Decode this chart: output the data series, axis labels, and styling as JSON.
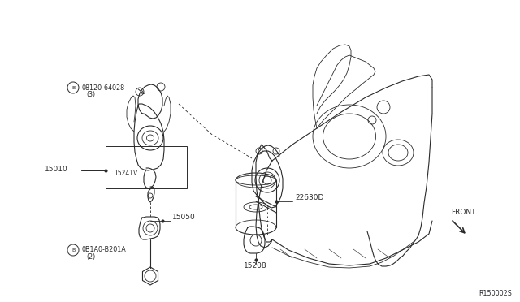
{
  "bg_color": "#ffffff",
  "line_color": "#2a2a2a",
  "fig_width": 6.4,
  "fig_height": 3.72,
  "diagram_code": "R150002S",
  "label_08120": "08120-64028",
  "label_08120_sub": "(3)",
  "label_0B1A0": "0B1A0-B201A",
  "label_0B1A0_sub": "(2)",
  "label_15010": "15010",
  "label_15241V": "15241V",
  "label_15050": "15050",
  "label_22630D": "22630D",
  "label_15208": "15208",
  "label_FRONT": "FRONT"
}
